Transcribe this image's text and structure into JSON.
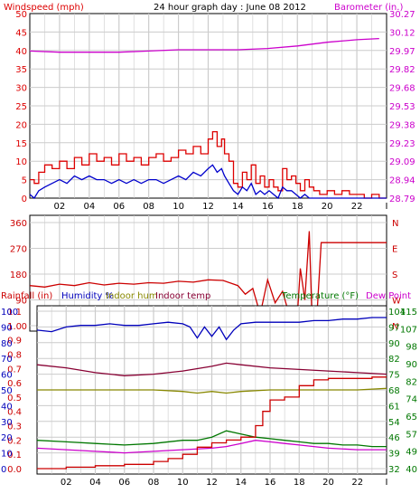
{
  "colors": {
    "wind": "#dd0000",
    "gust_avg": "#0000cc",
    "barometer": "#cc00cc",
    "winddir": "#cc0000",
    "humidity": "#0000bb",
    "indoor_hum": "#888800",
    "indoor_temp": "#880033",
    "temperature": "#007700",
    "dew_point": "#cc00cc",
    "rainfall": "#cc0000",
    "grid": "#cccccc"
  },
  "chart_data": [
    {
      "type": "line",
      "title": "24 hour graph day : June 08 2012",
      "left_label": "Windspeed (mph)",
      "right_label": "Barometer (in.)",
      "left_ticks": [
        "0",
        "5",
        "10",
        "15",
        "20",
        "25",
        "30",
        "35",
        "40",
        "45",
        "50"
      ],
      "right_ticks": [
        "28.79",
        "28.94",
        "29.09",
        "29.23",
        "29.38",
        "29.53",
        "29.68",
        "29.82",
        "29.97",
        "30.12",
        "30.27"
      ],
      "ylim_left": [
        0,
        50
      ],
      "ylim_right": [
        28.79,
        30.27
      ],
      "x_ticks": [
        "02",
        "04",
        "06",
        "08",
        "10",
        "12",
        "14",
        "16",
        "18",
        "20",
        "22",
        "I"
      ],
      "xlim": [
        0,
        24
      ],
      "series": [
        {
          "key": "wind",
          "step": true,
          "x": [
            0,
            0.3,
            0.6,
            1,
            1.5,
            2,
            2.5,
            3,
            3.5,
            4,
            4.5,
            5,
            5.5,
            6,
            6.5,
            7,
            7.5,
            8,
            8.5,
            9,
            9.5,
            10,
            10.5,
            11,
            11.5,
            12,
            12.3,
            12.6,
            12.9,
            13.1,
            13.4,
            13.7,
            14,
            14.3,
            14.6,
            14.9,
            15.2,
            15.5,
            15.8,
            16.1,
            16.4,
            16.7,
            17,
            17.3,
            17.6,
            17.9,
            18.2,
            18.5,
            18.8,
            19.1,
            19.5,
            20,
            20.5,
            21,
            21.5,
            22,
            22.5,
            23,
            23.5,
            24
          ],
          "y": [
            5,
            4,
            7,
            9,
            8,
            10,
            8,
            11,
            9,
            12,
            10,
            11,
            9,
            12,
            10,
            11,
            9,
            11,
            12,
            10,
            11,
            13,
            12,
            14,
            12,
            16,
            18,
            14,
            16,
            12,
            10,
            4,
            3,
            7,
            5,
            9,
            4,
            6,
            3,
            5,
            3,
            2,
            8,
            5,
            6,
            4,
            2,
            5,
            3,
            2,
            1,
            2,
            1,
            2,
            1,
            1,
            0,
            1,
            0,
            0
          ]
        },
        {
          "key": "gust_avg",
          "x": [
            0,
            0.3,
            0.6,
            1,
            1.5,
            2,
            2.5,
            3,
            3.5,
            4,
            4.5,
            5,
            5.5,
            6,
            6.5,
            7,
            7.5,
            8,
            8.5,
            9,
            9.5,
            10,
            10.5,
            11,
            11.5,
            12,
            12.3,
            12.6,
            12.9,
            13.1,
            13.4,
            13.7,
            14,
            14.3,
            14.6,
            14.9,
            15.2,
            15.5,
            15.8,
            16.1,
            16.4,
            16.7,
            17,
            17.3,
            17.6,
            17.9,
            18.2,
            18.5,
            18.8,
            19.1,
            19.5,
            20,
            20.5,
            21,
            21.5,
            22,
            22.5,
            23,
            23.5,
            24
          ],
          "y": [
            1,
            0,
            2,
            3,
            4,
            5,
            4,
            6,
            5,
            6,
            5,
            5,
            4,
            5,
            4,
            5,
            4,
            5,
            5,
            4,
            5,
            6,
            5,
            7,
            6,
            8,
            9,
            7,
            8,
            6,
            4,
            2,
            1,
            3,
            2,
            4,
            1,
            2,
            1,
            2,
            1,
            0,
            3,
            2,
            2,
            1,
            0,
            1,
            0,
            0,
            0,
            0,
            0,
            0,
            0,
            0,
            0,
            0,
            0,
            0
          ]
        },
        {
          "key": "barometer",
          "x": [
            0,
            2,
            4,
            6,
            8,
            10,
            12,
            14,
            16,
            18,
            20,
            22,
            23.5
          ],
          "y": [
            29.97,
            29.96,
            29.96,
            29.96,
            29.97,
            29.98,
            29.98,
            29.98,
            29.99,
            30.01,
            30.04,
            30.06,
            30.07
          ]
        }
      ]
    },
    {
      "type": "line",
      "left_ticks": [
        "0",
        "90",
        "180",
        "270",
        "360"
      ],
      "right_ticks": [
        "N",
        "E",
        "S",
        "W",
        "N"
      ],
      "ylim": [
        0,
        360
      ],
      "xlim": [
        0,
        24
      ],
      "series": [
        {
          "key": "winddir",
          "x": [
            0,
            1,
            2,
            3,
            4,
            5,
            6,
            7,
            8,
            9,
            10,
            11,
            12,
            13,
            14,
            14.5,
            15,
            15.5,
            16,
            16.5,
            17,
            17.5,
            18,
            18.2,
            18.5,
            18.8,
            19.0,
            19.3,
            19.6,
            24
          ],
          "y": [
            140,
            135,
            145,
            140,
            150,
            142,
            148,
            145,
            150,
            148,
            155,
            152,
            160,
            158,
            140,
            110,
            130,
            40,
            160,
            80,
            120,
            30,
            40,
            200,
            90,
            330,
            0,
            20,
            290,
            290
          ]
        }
      ]
    },
    {
      "type": "line",
      "left_label_1": "Rainfall (in)",
      "left_label_2": "Humidity %",
      "left_label_3": "Indoor hum",
      "left_label_4": "Indoor temp",
      "right_label_1": "Temperature (°F)",
      "right_label_2": "Dew Point",
      "rain_ticks": [
        "0.0",
        "0.1",
        "0.2",
        "0.3",
        "0.4",
        "0.5",
        "0.6",
        "0.7",
        "0.8",
        "0.9",
        "1.0",
        "1.1"
      ],
      "hum_ticks": [
        "0",
        "10",
        "20",
        "30",
        "40",
        "50",
        "60",
        "70",
        "80",
        "90",
        "100"
      ],
      "temp_ticks_1": [
        "32",
        "39",
        "46",
        "54",
        "61",
        "68",
        "75",
        "82",
        "90",
        "97",
        "104"
      ],
      "temp_ticks_2": [
        "40",
        "49",
        "57",
        "65",
        "74",
        "82",
        "90",
        "98",
        "107",
        "115"
      ],
      "xlim": [
        0,
        24
      ],
      "series": [
        {
          "key": "humidity",
          "x": [
            0,
            1,
            2,
            3,
            4,
            5,
            6,
            7,
            8,
            9,
            10,
            10.5,
            11,
            11.5,
            12,
            12.5,
            13,
            13.5,
            14,
            15,
            16,
            17,
            18,
            19,
            20,
            21,
            22,
            23,
            24
          ],
          "y": [
            88,
            87,
            90,
            91,
            91,
            92,
            91,
            91,
            92,
            93,
            92,
            90,
            83,
            90,
            84,
            90,
            82,
            88,
            92,
            93,
            93,
            93,
            93,
            94,
            94,
            95,
            95,
            96,
            96
          ]
        },
        {
          "key": "indoor_temp",
          "x": [
            0,
            2,
            4,
            6,
            8,
            10,
            12,
            13,
            14,
            16,
            18,
            20,
            22,
            24
          ],
          "y": [
            66,
            64,
            61,
            59,
            60,
            62,
            65,
            67,
            66,
            64,
            63,
            62,
            61,
            60
          ]
        },
        {
          "key": "indoor_hum",
          "x": [
            0,
            4,
            8,
            10,
            11,
            12,
            13,
            14,
            16,
            18,
            20,
            22,
            24
          ],
          "y": [
            50,
            50,
            50,
            49,
            48,
            49,
            48,
            49,
            50,
            50,
            50,
            50,
            51
          ]
        },
        {
          "key": "temperature",
          "x": [
            0,
            2,
            4,
            6,
            8,
            10,
            11,
            12,
            13,
            14,
            15,
            16,
            17,
            18,
            19,
            20,
            21,
            22,
            23,
            24
          ],
          "y": [
            18,
            17,
            16,
            15,
            16,
            18,
            18,
            20,
            24,
            22,
            20,
            19,
            18,
            17,
            16,
            16,
            15,
            15,
            14,
            14
          ]
        },
        {
          "key": "dew_point",
          "x": [
            0,
            2,
            4,
            6,
            8,
            10,
            12,
            13,
            14,
            15,
            16,
            17,
            18,
            19,
            20,
            22,
            24
          ],
          "y": [
            13,
            12,
            11,
            10,
            11,
            12,
            13,
            14,
            16,
            18,
            17,
            16,
            15,
            14,
            13,
            12,
            12
          ]
        },
        {
          "key": "rainfall",
          "step": true,
          "x": [
            0,
            2,
            4,
            6,
            8,
            9,
            10,
            11,
            12,
            13,
            14,
            15,
            15.5,
            16,
            17,
            18,
            19,
            20,
            21,
            22,
            23,
            24
          ],
          "y": [
            0.0,
            0.01,
            0.02,
            0.03,
            0.05,
            0.07,
            0.1,
            0.15,
            0.18,
            0.2,
            0.22,
            0.3,
            0.4,
            0.48,
            0.5,
            0.58,
            0.62,
            0.63,
            0.63,
            0.63,
            0.64,
            0.64
          ]
        }
      ]
    }
  ]
}
